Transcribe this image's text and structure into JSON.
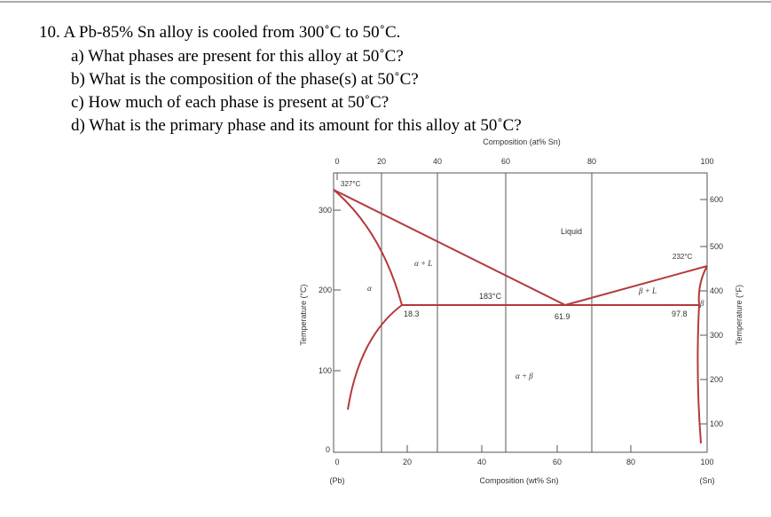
{
  "question": {
    "title": "10. A Pb-85% Sn  alloy is cooled from 300˚C to 50˚C.",
    "items": [
      "a)  What phases are present for this alloy at 50˚C?",
      "b)  What is the composition of the phase(s) at 50˚C?",
      "c)  How much of each phase is present at 50˚C?",
      "d)  What is the primary phase and its amount for this alloy at 50˚C?"
    ]
  },
  "diagram": {
    "top_axis_title": "Composition (at% Sn)",
    "top_ticks": [
      "0",
      "20",
      "40",
      "60",
      "80",
      "100"
    ],
    "bottom_axis_title": "Composition (wt% Sn)",
    "bottom_ticks": [
      "0",
      "20",
      "40",
      "60",
      "80",
      "100"
    ],
    "left_axis_title": "Temperature (°C)",
    "left_ticks": [
      "0",
      "100",
      "200",
      "300"
    ],
    "right_axis_title": "Temperature (°F)",
    "right_ticks": [
      "100",
      "200",
      "300",
      "400",
      "500",
      "600"
    ],
    "left_end": "(Pb)",
    "right_end": "(Sn)",
    "labels": {
      "melt_pb": "327°C",
      "melt_sn": "232°C",
      "eutectic_t": "183°C",
      "liquid": "Liquid",
      "alpha_l": "α + L",
      "beta_l": "β + L",
      "alpha_beta": "α + β",
      "alpha": "α",
      "beta": "β",
      "c_alpha": "18.3",
      "c_eut": "61.9",
      "c_beta": "97.8"
    }
  }
}
